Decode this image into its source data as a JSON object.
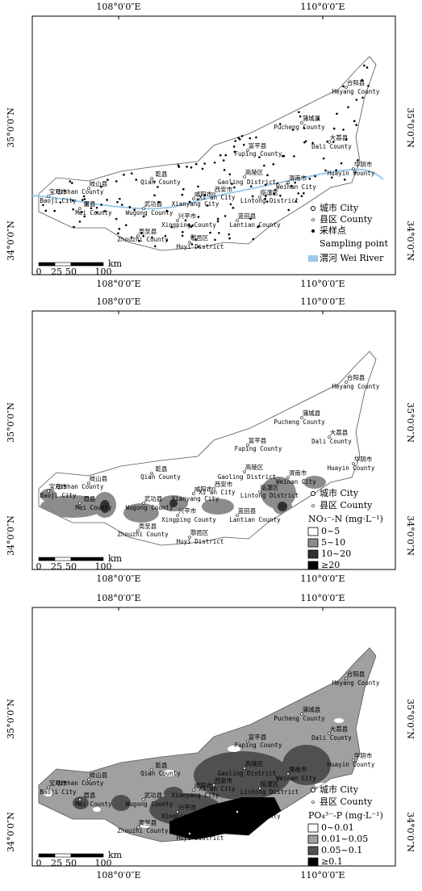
{
  "axes": {
    "lon": [
      "108°0′0″E",
      "110°0′0″E"
    ],
    "lat": [
      "35°0′0″N",
      "34°0′0″N"
    ]
  },
  "scale": {
    "ticks": [
      "0",
      "25",
      "50",
      "100"
    ],
    "unit": "km"
  },
  "places": [
    {
      "zh": "合阳县",
      "en": "Heyang County"
    },
    {
      "zh": "蒲城县",
      "en": "Pucheng County"
    },
    {
      "zh": "大荔县",
      "en": "Dali County"
    },
    {
      "zh": "富平县",
      "en": "Fuping County"
    },
    {
      "zh": "华阴市",
      "en": "Huayin County"
    },
    {
      "zh": "乾县",
      "en": "Qian County"
    },
    {
      "zh": "高陵区",
      "en": "Gaoling District"
    },
    {
      "zh": "渭南市",
      "en": "Weinan City"
    },
    {
      "zh": "岐山县",
      "en": "Qishan County"
    },
    {
      "zh": "宝鸡市",
      "en": "Baoji City"
    },
    {
      "zh": "西安市",
      "en": "Xi'an City"
    },
    {
      "zh": "咸阳市",
      "en": "Xianyang City"
    },
    {
      "zh": "临潼区",
      "en": "Lintong District"
    },
    {
      "zh": "眉县",
      "en": "Mei County"
    },
    {
      "zh": "武功县",
      "en": "Wugong County"
    },
    {
      "zh": "兴平市",
      "en": "Xingping County"
    },
    {
      "zh": "蓝田县",
      "en": "Lantian County"
    },
    {
      "zh": "周至县",
      "en": "Zhouzhi County"
    },
    {
      "zh": "鄠邑区",
      "en": "Huyi District"
    }
  ],
  "panels": [
    {
      "legend": {
        "items": [
          "城市 City",
          "县区 County",
          "采样点",
          "Sampling point",
          "渭河 Wei River"
        ]
      }
    },
    {
      "legend": {
        "items": [
          "城市 City",
          "县区 County"
        ],
        "title": "NO₃⁻-N (mg·L⁻¹)",
        "classes": [
          "0~5",
          "5~10",
          "10~20",
          "≥20"
        ]
      }
    },
    {
      "legend": {
        "items": [
          "城市 City",
          "县区 County"
        ],
        "title": "PO₄³⁻-P (mg·L⁻¹)",
        "classes": [
          "0~0.01",
          "0.01~0.05",
          "0.05~0.1",
          "≥0.1"
        ]
      }
    }
  ]
}
